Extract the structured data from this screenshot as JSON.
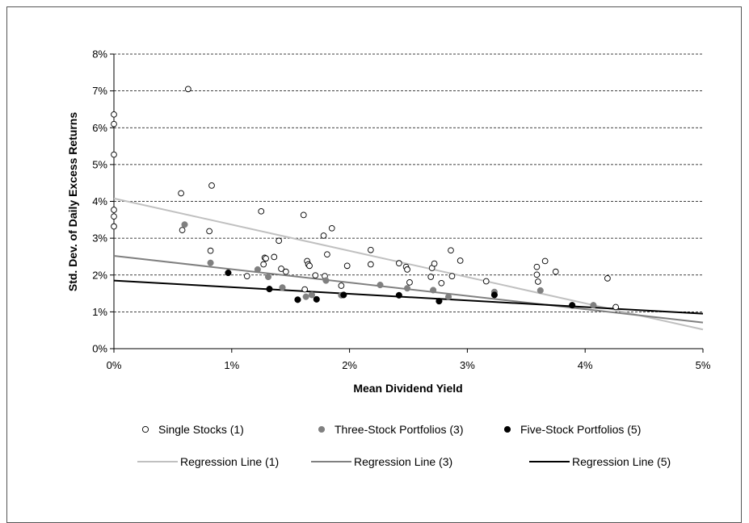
{
  "chart_data": {
    "type": "scatter",
    "xlabel": "Mean Dividend Yield",
    "ylabel": "Std. Dev. of Daily Excess Returns",
    "xlim": [
      0,
      0.05
    ],
    "ylim": [
      0,
      0.08
    ],
    "xticks": [
      0,
      0.01,
      0.02,
      0.03,
      0.04,
      0.05
    ],
    "xtick_labels": [
      "0%",
      "1%",
      "2%",
      "3%",
      "4%",
      "5%"
    ],
    "yticks": [
      0,
      0.01,
      0.02,
      0.03,
      0.04,
      0.05,
      0.06,
      0.07,
      0.08
    ],
    "ytick_labels": [
      "0%",
      "1%",
      "2%",
      "3%",
      "4%",
      "5%",
      "6%",
      "7%",
      "8%"
    ],
    "grid": "horizontal dashed",
    "legend_position": "bottom",
    "series": [
      {
        "name": "Single Stocks (1)",
        "marker": "open-circle",
        "color": "#000000",
        "points": [
          [
            0.0,
            0.0636
          ],
          [
            0.0,
            0.061
          ],
          [
            0.0,
            0.0527
          ],
          [
            0.0,
            0.0377
          ],
          [
            0.0,
            0.0359
          ],
          [
            0.0,
            0.0332
          ],
          [
            0.0057,
            0.0422
          ],
          [
            0.0058,
            0.0322
          ],
          [
            0.0063,
            0.0705
          ],
          [
            0.0081,
            0.0319
          ],
          [
            0.0082,
            0.0266
          ],
          [
            0.0083,
            0.0443
          ],
          [
            0.0113,
            0.0197
          ],
          [
            0.0125,
            0.0373
          ],
          [
            0.0127,
            0.0229
          ],
          [
            0.0128,
            0.0247
          ],
          [
            0.0129,
            0.0245
          ],
          [
            0.0136,
            0.0249
          ],
          [
            0.014,
            0.0293
          ],
          [
            0.0142,
            0.0217
          ],
          [
            0.0146,
            0.0209
          ],
          [
            0.0161,
            0.0363
          ],
          [
            0.0162,
            0.0161
          ],
          [
            0.0164,
            0.0238
          ],
          [
            0.0165,
            0.0229
          ],
          [
            0.0166,
            0.0225
          ],
          [
            0.0171,
            0.0199
          ],
          [
            0.0178,
            0.0307
          ],
          [
            0.0179,
            0.0197
          ],
          [
            0.0181,
            0.0256
          ],
          [
            0.0185,
            0.0327
          ],
          [
            0.0193,
            0.0171
          ],
          [
            0.0198,
            0.0225
          ],
          [
            0.0218,
            0.0268
          ],
          [
            0.0218,
            0.0229
          ],
          [
            0.0242,
            0.0232
          ],
          [
            0.0248,
            0.0222
          ],
          [
            0.0249,
            0.0215
          ],
          [
            0.0251,
            0.018
          ],
          [
            0.0269,
            0.0195
          ],
          [
            0.027,
            0.0219
          ],
          [
            0.0272,
            0.0231
          ],
          [
            0.0278,
            0.0178
          ],
          [
            0.0286,
            0.0267
          ],
          [
            0.0287,
            0.0197
          ],
          [
            0.0294,
            0.0239
          ],
          [
            0.0316,
            0.0183
          ],
          [
            0.0359,
            0.0222
          ],
          [
            0.0359,
            0.0201
          ],
          [
            0.036,
            0.0182
          ],
          [
            0.0366,
            0.0238
          ],
          [
            0.0375,
            0.0209
          ],
          [
            0.0419,
            0.0191
          ],
          [
            0.0426,
            0.0113
          ]
        ]
      },
      {
        "name": "Three-Stock Portfolios (3)",
        "marker": "filled-circle",
        "color": "#808080",
        "points": [
          [
            0.006,
            0.0337
          ],
          [
            0.0082,
            0.0233
          ],
          [
            0.0122,
            0.0215
          ],
          [
            0.0131,
            0.0195
          ],
          [
            0.0143,
            0.0166
          ],
          [
            0.0163,
            0.0141
          ],
          [
            0.0168,
            0.0146
          ],
          [
            0.018,
            0.0185
          ],
          [
            0.0193,
            0.0145
          ],
          [
            0.0226,
            0.0173
          ],
          [
            0.0249,
            0.0164
          ],
          [
            0.0271,
            0.0159
          ],
          [
            0.0284,
            0.0141
          ],
          [
            0.0323,
            0.0154
          ],
          [
            0.0362,
            0.0158
          ],
          [
            0.0407,
            0.0118
          ]
        ]
      },
      {
        "name": "Five-Stock Portfolios (5)",
        "marker": "filled-circle",
        "color": "#000000",
        "points": [
          [
            0.0097,
            0.0206
          ],
          [
            0.0132,
            0.0162
          ],
          [
            0.0156,
            0.0133
          ],
          [
            0.0172,
            0.0134
          ],
          [
            0.0195,
            0.0146
          ],
          [
            0.0242,
            0.0145
          ],
          [
            0.0276,
            0.0129
          ],
          [
            0.0323,
            0.0146
          ],
          [
            0.0389,
            0.0118
          ]
        ]
      }
    ],
    "regression_lines": [
      {
        "name": "Regression Line (1)",
        "color": "#c0c0c0",
        "intercept": 0.0408,
        "end_value": 0.0052
      },
      {
        "name": "Regression Line (3)",
        "color": "#808080",
        "intercept": 0.0252,
        "end_value": 0.0071
      },
      {
        "name": "Regression Line (5)",
        "color": "#000000",
        "intercept": 0.0185,
        "end_value": 0.0095
      }
    ],
    "legend": [
      {
        "label": "Single Stocks (1)",
        "kind": "marker",
        "marker": "open-circle",
        "color": "#000000"
      },
      {
        "label": "Three-Stock Portfolios (3)",
        "kind": "marker",
        "marker": "filled-circle",
        "color": "#808080"
      },
      {
        "label": "Five-Stock Portfolios (5)",
        "kind": "marker",
        "marker": "filled-circle",
        "color": "#000000"
      },
      {
        "label": "Regression Line (1)",
        "kind": "line",
        "color": "#c0c0c0"
      },
      {
        "label": "Regression Line (3)",
        "kind": "line",
        "color": "#808080"
      },
      {
        "label": "Regression Line (5)",
        "kind": "line",
        "color": "#000000"
      }
    ]
  }
}
